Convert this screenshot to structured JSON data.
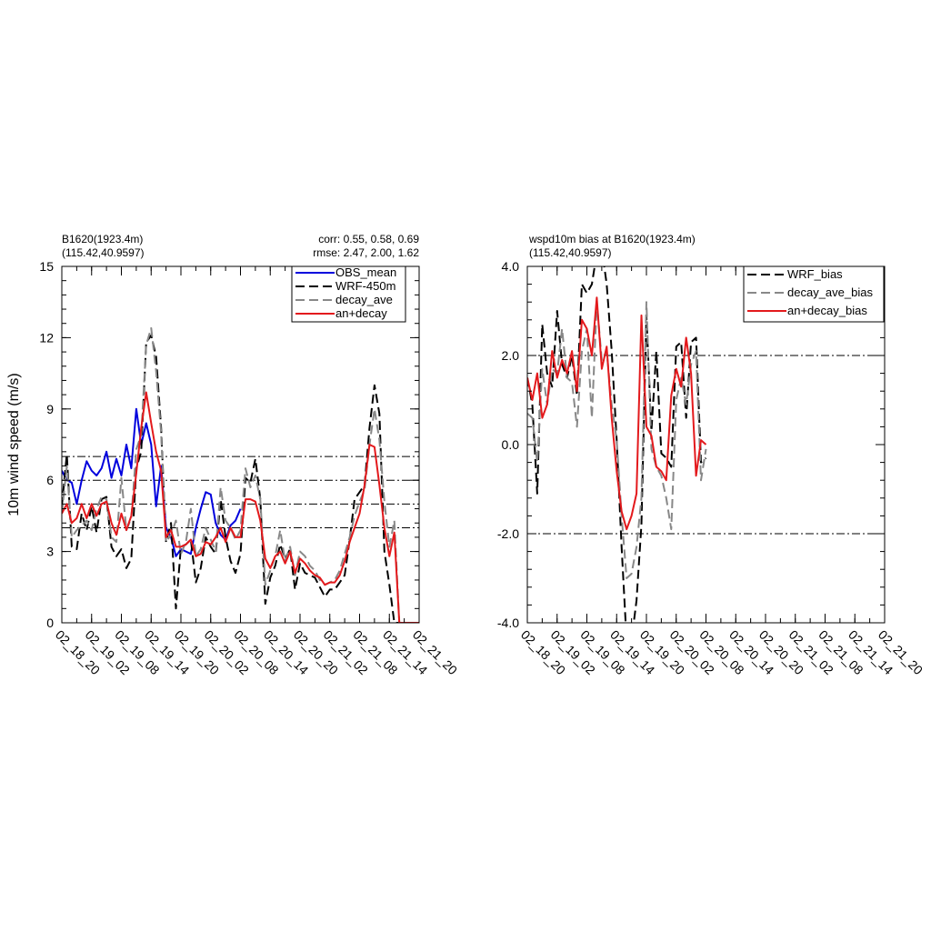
{
  "chart_data": [
    {
      "type": "line",
      "title_left": [
        "B1620(1923.4m)",
        "(115.42,40.9597)"
      ],
      "title_right": [
        "corr:  0.55, 0.58, 0.69",
        "rmse: 2.47, 2.00, 1.62"
      ],
      "ylabel": "10m wind speed (m/s)",
      "xlabel": "",
      "x_range": [
        0,
        72
      ],
      "ylim": [
        0,
        15
      ],
      "y_ticks": [
        0,
        3,
        6,
        9,
        12,
        15
      ],
      "y_tick_labels": [
        "0",
        "3",
        "6",
        "9",
        "12",
        "15"
      ],
      "x_ticks": [
        0,
        6,
        12,
        18,
        24,
        30,
        36,
        42,
        48,
        54,
        60,
        66,
        72
      ],
      "x_tick_labels": [
        "02_18_20",
        "02_19_02",
        "02_19_08",
        "02_19_14",
        "02_19_20",
        "02_20_02",
        "02_20_08",
        "02_20_14",
        "02_20_20",
        "02_21_02",
        "02_21_08",
        "02_21_14",
        "02_21_20"
      ],
      "ref_lines": [
        7,
        6,
        5,
        4
      ],
      "legend_position": "top-right",
      "series": [
        {
          "name": "OBS_mean",
          "color": "#0000dd",
          "dash": "solid",
          "width": 2,
          "x": [
            0,
            1,
            2,
            3,
            4,
            5,
            6,
            7,
            8,
            9,
            10,
            11,
            12,
            13,
            14,
            15,
            16,
            17,
            18,
            19,
            20,
            21,
            22,
            23,
            24,
            25,
            26,
            27,
            28,
            29,
            30,
            31,
            32,
            33,
            34,
            35,
            36
          ],
          "y": [
            6.4,
            6.0,
            5.9,
            5.0,
            6.0,
            6.8,
            6.4,
            6.2,
            6.5,
            7.2,
            6.1,
            6.9,
            6.2,
            7.5,
            6.5,
            9.0,
            7.5,
            8.4,
            7.5,
            4.9,
            6.6,
            4.0,
            3.6,
            2.8,
            3.1,
            3.0,
            2.9,
            4.0,
            4.8,
            5.5,
            5.4,
            4.2,
            3.7,
            3.5,
            4.1,
            4.3,
            4.8
          ]
        },
        {
          "name": "WRF-450m",
          "color": "#000000",
          "dash": "10,5",
          "width": 2,
          "x": [
            0,
            1,
            2,
            3,
            4,
            5,
            6,
            7,
            8,
            9,
            10,
            11,
            12,
            13,
            14,
            15,
            16,
            17,
            18,
            19,
            20,
            21,
            22,
            23,
            24,
            25,
            26,
            27,
            28,
            29,
            30,
            31,
            32,
            33,
            34,
            35,
            36,
            37,
            38,
            39,
            40,
            41,
            42,
            43,
            44,
            45,
            46,
            47,
            48,
            49,
            50,
            51,
            52,
            53,
            54,
            55,
            56,
            57,
            58,
            59,
            60,
            61,
            62,
            63,
            64,
            65,
            66,
            67,
            68,
            69,
            70,
            71,
            72
          ],
          "y": [
            4.9,
            7.1,
            3.2,
            3.1,
            4.6,
            3.9,
            4.9,
            3.8,
            5.2,
            5.3,
            3.2,
            2.8,
            3.1,
            2.3,
            2.7,
            6.5,
            7.2,
            11.8,
            12.1,
            11.2,
            8.2,
            3.4,
            4.2,
            0.6,
            3.2,
            3.3,
            3.5,
            1.7,
            2.3,
            3.6,
            3.2,
            2.9,
            5.2,
            3.6,
            2.6,
            2.1,
            2.9,
            6.1,
            5.9,
            6.9,
            5.2,
            0.8,
            1.9,
            2.4,
            3.3,
            2.7,
            3.1,
            1.4,
            2.5,
            2.1,
            2.0,
            1.9,
            1.5,
            1.1,
            1.4,
            1.4,
            1.7,
            2.0,
            3.5,
            5.2,
            5.5,
            5.8,
            8.2,
            10.0,
            8.8,
            3.0,
            1.6,
            0,
            0,
            0,
            0,
            0,
            0
          ]
        },
        {
          "name": "decay_ave",
          "color": "#888888",
          "dash": "10,5",
          "width": 2,
          "x": [
            0,
            1,
            2,
            3,
            4,
            5,
            6,
            7,
            8,
            9,
            10,
            11,
            12,
            13,
            14,
            15,
            16,
            17,
            18,
            19,
            20,
            21,
            22,
            23,
            24,
            25,
            26,
            27,
            28,
            29,
            30,
            31,
            32,
            33,
            34,
            35,
            36,
            37,
            38,
            39,
            40,
            41,
            42,
            43,
            44,
            45,
            46,
            47,
            48,
            49,
            50,
            51,
            52,
            53,
            54,
            55,
            56,
            57,
            58,
            59,
            60,
            61,
            62,
            63,
            64,
            65,
            66,
            67,
            68,
            69,
            70,
            71,
            72
          ],
          "y": [
            4.6,
            6.6,
            3.6,
            3.9,
            4.1,
            4.3,
            3.9,
            4.8,
            5.3,
            5.2,
            3.6,
            3.4,
            6.1,
            3.9,
            4.4,
            7.3,
            7.9,
            11.7,
            12.4,
            10.6,
            8.0,
            3.4,
            3.7,
            4.3,
            2.9,
            3.4,
            4.8,
            2.8,
            3.1,
            4.0,
            3.5,
            3.0,
            5.7,
            4.3,
            4.0,
            3.5,
            3.9,
            6.5,
            5.7,
            6.2,
            5.2,
            1.6,
            2.2,
            2.8,
            3.9,
            2.6,
            3.2,
            2.0,
            3.0,
            2.8,
            2.4,
            2.2,
            1.8,
            1.6,
            1.7,
            1.8,
            2.2,
            2.9,
            3.6,
            4.5,
            5.1,
            5.6,
            7.5,
            9.0,
            7.7,
            5.1,
            3.2,
            4.3,
            0,
            0,
            0,
            0,
            0
          ]
        },
        {
          "name": "an+decay",
          "color": "#e3191c",
          "dash": "solid",
          "width": 2,
          "x": [
            0,
            1,
            2,
            3,
            4,
            5,
            6,
            7,
            8,
            9,
            10,
            11,
            12,
            13,
            14,
            15,
            16,
            17,
            18,
            19,
            20,
            21,
            22,
            23,
            24,
            25,
            26,
            27,
            28,
            29,
            30,
            31,
            32,
            33,
            34,
            35,
            36,
            37,
            38,
            39,
            40,
            41,
            42,
            43,
            44,
            45,
            46,
            47,
            48,
            49,
            50,
            51,
            52,
            53,
            54,
            55,
            56,
            57,
            58,
            59,
            60,
            61,
            62,
            63,
            64,
            65,
            66,
            67,
            68,
            69,
            70,
            71,
            72
          ],
          "y": [
            4.6,
            5.0,
            4.2,
            4.4,
            5.0,
            4.4,
            5.0,
            4.5,
            5.0,
            5.1,
            4.2,
            3.7,
            4.6,
            3.9,
            4.5,
            6.3,
            8.2,
            9.7,
            8.4,
            7.2,
            6.4,
            3.6,
            3.9,
            3.2,
            3.2,
            3.3,
            3.5,
            2.8,
            2.9,
            3.4,
            3.3,
            3.6,
            4.0,
            3.4,
            4.0,
            3.6,
            3.6,
            5.2,
            5.2,
            5.1,
            4.3,
            2.7,
            2.3,
            2.8,
            3.0,
            2.5,
            3.0,
            2.1,
            2.7,
            2.5,
            2.2,
            2.0,
            1.9,
            1.6,
            1.7,
            1.7,
            2.0,
            2.6,
            3.4,
            4.0,
            4.6,
            5.8,
            7.5,
            7.4,
            5.8,
            4.0,
            2.8,
            3.8,
            0,
            0,
            0,
            0,
            0
          ]
        }
      ]
    },
    {
      "type": "line",
      "title_left": [
        "wspd10m bias at B1620(1923.4m)",
        "(115.42,40.9597)"
      ],
      "ylabel": "",
      "xlabel": "",
      "x_range": [
        0,
        72
      ],
      "ylim": [
        -4,
        4
      ],
      "y_ticks": [
        -4,
        -2,
        0,
        2,
        4
      ],
      "y_tick_labels": [
        "-4.0",
        "-2.0",
        "0.0",
        "2.0",
        "4.0"
      ],
      "x_ticks": [
        0,
        6,
        12,
        18,
        24,
        30,
        36,
        42,
        48,
        54,
        60,
        66,
        72
      ],
      "x_tick_labels": [
        "02_18_20",
        "02_19_02",
        "02_19_08",
        "02_19_14",
        "02_19_20",
        "02_20_02",
        "02_20_08",
        "02_20_14",
        "02_20_20",
        "02_21_02",
        "02_21_08",
        "02_21_14",
        "02_21_20"
      ],
      "ref_lines": [
        2,
        -2
      ],
      "legend_position": "top-right",
      "series": [
        {
          "name": "WRF_bias",
          "color": "#000000",
          "dash": "10,5",
          "width": 2,
          "x": [
            0,
            1,
            2,
            3,
            4,
            5,
            6,
            7,
            8,
            9,
            10,
            11,
            12,
            13,
            14,
            15,
            16,
            17,
            18,
            19,
            20,
            21,
            22,
            23,
            24,
            25,
            26,
            27,
            28,
            29,
            30,
            31,
            32,
            33,
            34,
            35,
            36
          ],
          "y": [
            1.5,
            0.9,
            -1.1,
            2.7,
            1.6,
            1.3,
            3.0,
            1.8,
            1.5,
            2.0,
            1.1,
            3.6,
            3.4,
            3.6,
            4.3,
            4.4,
            3.6,
            2.1,
            0.1,
            -2.3,
            -4.4,
            -4.4,
            -3.5,
            -1.8,
            2.9,
            0.3,
            2.1,
            -0.2,
            -0.3,
            -0.5,
            2.2,
            2.3,
            0.6,
            2.3,
            2.4,
            -0.4,
            -0.3
          ]
        },
        {
          "name": "decay_ave_bias",
          "color": "#888888",
          "dash": "10,5",
          "width": 2,
          "x": [
            0,
            1,
            2,
            3,
            4,
            5,
            6,
            7,
            8,
            9,
            10,
            11,
            12,
            13,
            14,
            15,
            16,
            17,
            18,
            19,
            20,
            21,
            22,
            23,
            24,
            25,
            26,
            27,
            28,
            29,
            30,
            31,
            32,
            33,
            34,
            35,
            36
          ],
          "y": [
            0.7,
            0.6,
            -0.4,
            1.7,
            0.9,
            1.7,
            1.6,
            2.6,
            1.5,
            1.4,
            0.4,
            2.1,
            2.6,
            0.6,
            3.2,
            1.9,
            2.1,
            0.9,
            0.1,
            -1.6,
            -3.0,
            -2.9,
            -2.3,
            -1.2,
            3.2,
            -0.1,
            -0.5,
            -0.7,
            -1.2,
            -1.9,
            1.0,
            1.5,
            0.9,
            1.8,
            2.1,
            -0.8,
            -0.1
          ]
        },
        {
          "name": "an+decay_bias",
          "color": "#e3191c",
          "dash": "solid",
          "width": 2,
          "x": [
            0,
            1,
            2,
            3,
            4,
            5,
            6,
            7,
            8,
            9,
            10,
            11,
            12,
            13,
            14,
            15,
            16,
            17,
            18,
            19,
            20,
            21,
            22,
            23,
            24,
            25,
            26,
            27,
            28,
            29,
            30,
            31,
            32,
            33,
            34,
            35,
            36
          ],
          "y": [
            1.5,
            1.0,
            1.6,
            0.6,
            0.9,
            2.1,
            1.5,
            1.9,
            1.6,
            2.1,
            1.2,
            2.8,
            2.6,
            2.0,
            3.3,
            1.7,
            2.2,
            0.6,
            -0.6,
            -1.5,
            -1.9,
            -1.6,
            -1.1,
            2.9,
            0.4,
            0.2,
            -0.5,
            -0.6,
            -0.8,
            1.1,
            1.7,
            1.3,
            2.4,
            1.6,
            -0.7,
            0.1,
            0.0
          ]
        }
      ]
    }
  ]
}
